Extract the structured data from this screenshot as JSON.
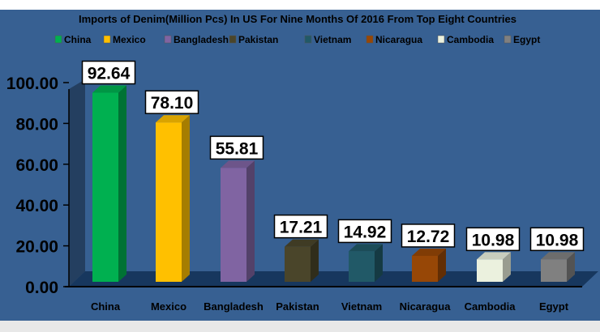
{
  "chart_data": {
    "type": "bar",
    "title": "Imports of Denim(Million Pcs) In US For Nine Months Of 2016 From Top Eight Countries",
    "categories": [
      "China",
      "Mexico",
      "Bangladesh",
      "Pakistan",
      "Vietnam",
      "Nicaragua",
      "Cambodia",
      "Egypt"
    ],
    "values": [
      92.64,
      78.1,
      55.81,
      17.21,
      14.92,
      12.72,
      10.98,
      10.98
    ],
    "value_labels": [
      "92.64",
      "78.10",
      "55.81",
      "17.21",
      "14.92",
      "12.72",
      "10.98",
      "10.98"
    ],
    "colors": [
      "#00b050",
      "#ffc000",
      "#8064a2",
      "#4a452a",
      "#215967",
      "#974706",
      "#ebf1de",
      "#808080"
    ],
    "yticks": [
      "0.00",
      "20.00",
      "40.00",
      "60.00",
      "80.00",
      "100.00"
    ],
    "ylim": [
      0,
      100
    ],
    "xlabel": "",
    "ylabel": "",
    "legend_position": "top",
    "grid": false,
    "background": "#366092"
  }
}
